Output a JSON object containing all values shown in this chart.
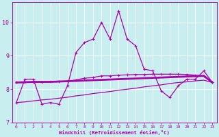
{
  "xlabel": "Windchill (Refroidissement éolien,°C)",
  "background_color": "#c8eef0",
  "line_color": "#aa00aa",
  "xlim": [
    -0.5,
    23.5
  ],
  "ylim": [
    7.0,
    10.6
  ],
  "yticks": [
    7,
    8,
    9,
    10
  ],
  "xticks": [
    0,
    1,
    2,
    3,
    4,
    5,
    6,
    7,
    8,
    9,
    10,
    11,
    12,
    13,
    14,
    15,
    16,
    17,
    18,
    19,
    20,
    21,
    22,
    23
  ],
  "series1": [
    7.6,
    8.3,
    8.3,
    7.55,
    7.6,
    7.55,
    8.1,
    9.1,
    9.4,
    9.5,
    10.0,
    9.5,
    10.35,
    9.5,
    9.3,
    8.6,
    8.55,
    7.95,
    7.75,
    8.1,
    8.3,
    8.3,
    8.55,
    8.2
  ],
  "series2": [
    8.2,
    8.21,
    8.22,
    8.22,
    8.22,
    8.23,
    8.24,
    8.25,
    8.26,
    8.27,
    8.28,
    8.29,
    8.3,
    8.31,
    8.32,
    8.33,
    8.34,
    8.35,
    8.36,
    8.37,
    8.38,
    8.39,
    8.4,
    8.2
  ],
  "series3": [
    7.6,
    7.62,
    7.65,
    7.68,
    7.7,
    7.73,
    7.76,
    7.8,
    7.83,
    7.87,
    7.9,
    7.93,
    7.97,
    8.0,
    8.03,
    8.07,
    8.1,
    8.13,
    8.17,
    8.2,
    8.22,
    8.25,
    8.27,
    8.2
  ],
  "series4": [
    8.2,
    8.2,
    8.21,
    8.21,
    8.22,
    8.22,
    8.23,
    8.28,
    8.33,
    8.35,
    8.4,
    8.4,
    8.42,
    8.43,
    8.44,
    8.44,
    8.45,
    8.45,
    8.45,
    8.45,
    8.44,
    8.42,
    8.4,
    8.2
  ]
}
